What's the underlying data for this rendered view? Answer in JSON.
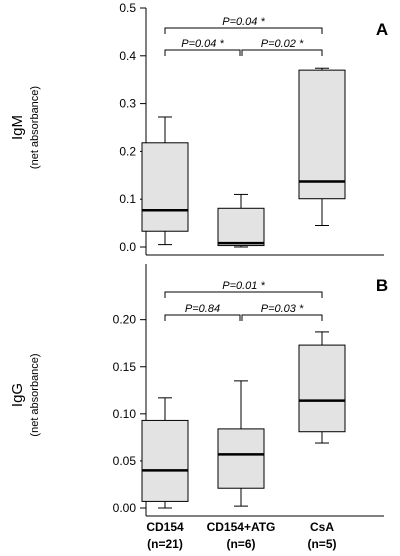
{
  "chart_data": [
    {
      "type": "box",
      "panel_label": "A",
      "ylabel": "IgM",
      "ylabel_sub": "(net absorbance)",
      "ylim": [
        0,
        0.5
      ],
      "yticks": [
        0.0,
        0.1,
        0.2,
        0.3,
        0.4,
        0.5
      ],
      "ytick_labels": [
        "0.0",
        "0.1",
        "0.2",
        "0.3",
        "0.4",
        "0.5"
      ],
      "categories": [
        "CD154",
        "CD154+ATG",
        "CsA"
      ],
      "boxes": [
        {
          "category": "CD154",
          "whisker_low": 0.005,
          "q1": 0.033,
          "median": 0.077,
          "q3": 0.218,
          "whisker_high": 0.272
        },
        {
          "category": "CD154+ATG",
          "whisker_low": 0.0,
          "q1": 0.003,
          "median": 0.008,
          "q3": 0.081,
          "whisker_high": 0.11
        },
        {
          "category": "CsA",
          "whisker_low": 0.045,
          "q1": 0.101,
          "median": 0.137,
          "q3": 0.37,
          "whisker_high": 0.374
        }
      ],
      "comparisons": [
        {
          "from": 0,
          "to": 2,
          "label": "P=0.04 *",
          "level": 2
        },
        {
          "from": 0,
          "to": 1,
          "label": "P=0.04 *",
          "level": 1
        },
        {
          "from": 1,
          "to": 2,
          "label": "P=0.02 *",
          "level": 1
        }
      ]
    },
    {
      "type": "box",
      "panel_label": "B",
      "ylabel": "IgG",
      "ylabel_sub": "(net absorbance)",
      "ylim": [
        0,
        0.24
      ],
      "yticks": [
        0.0,
        0.05,
        0.1,
        0.15,
        0.2
      ],
      "ytick_labels": [
        "0.00",
        "0.05",
        "0.10",
        "0.15",
        "0.20"
      ],
      "categories": [
        "CD154",
        "CD154+ATG",
        "CsA"
      ],
      "category_n": [
        "(n=21)",
        "(n=6)",
        "(n=5)"
      ],
      "boxes": [
        {
          "category": "CD154",
          "whisker_low": 0.0,
          "q1": 0.007,
          "median": 0.04,
          "q3": 0.093,
          "whisker_high": 0.117
        },
        {
          "category": "CD154+ATG",
          "whisker_low": 0.002,
          "q1": 0.021,
          "median": 0.057,
          "q3": 0.084,
          "whisker_high": 0.135
        },
        {
          "category": "CsA",
          "whisker_low": 0.069,
          "q1": 0.081,
          "median": 0.114,
          "q3": 0.173,
          "whisker_high": 0.187
        }
      ],
      "comparisons": [
        {
          "from": 0,
          "to": 2,
          "label": "P=0.01 *",
          "level": 2
        },
        {
          "from": 0,
          "to": 1,
          "label": "P=0.84",
          "level": 1
        },
        {
          "from": 1,
          "to": 2,
          "label": "P=0.03 *",
          "level": 1
        }
      ]
    }
  ],
  "colors": {
    "box_fill": "#e3e3e3",
    "stroke": "#000000"
  }
}
